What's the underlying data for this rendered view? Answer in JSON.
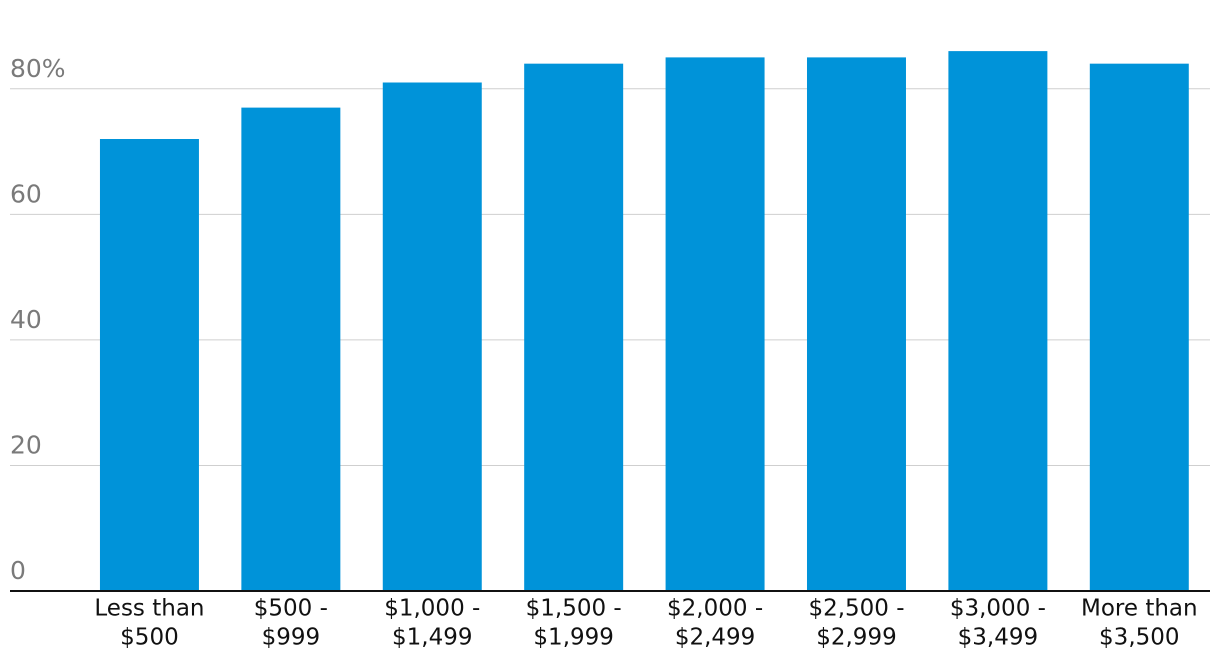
{
  "chart_data": {
    "type": "bar",
    "categories": [
      [
        "Less than",
        "$500"
      ],
      [
        "$500 -",
        "$999"
      ],
      [
        "$1,000 -",
        "$1,499"
      ],
      [
        "$1,500 -",
        "$1,999"
      ],
      [
        "$2,000 -",
        "$2,499"
      ],
      [
        "$2,500 -",
        "$2,999"
      ],
      [
        "$3,000 -",
        "$3,499"
      ],
      [
        "More than",
        "$3,500"
      ]
    ],
    "values": [
      72,
      77,
      81,
      84,
      85,
      85,
      86,
      84
    ],
    "color": "#0093d9",
    "ylim": [
      0,
      90
    ],
    "yticks": [
      0,
      20,
      40,
      60,
      {
        "value": 80,
        "label": "80%"
      }
    ],
    "grid": true
  }
}
